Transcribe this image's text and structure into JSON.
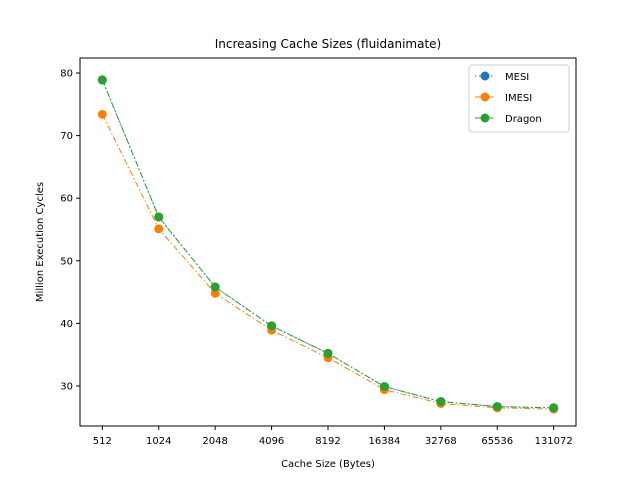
{
  "chart_data": {
    "type": "line",
    "title": "Increasing Cache Sizes (fluidanimate)",
    "xlabel": "Cache Size (Bytes)",
    "ylabel": "Million Execution Cycles",
    "categories": [
      "512",
      "1024",
      "2048",
      "4096",
      "8192",
      "16384",
      "32768",
      "65536",
      "131072"
    ],
    "ylim": [
      23.6,
      82.4
    ],
    "yticks": [
      30,
      40,
      50,
      60,
      70,
      80
    ],
    "grid": false,
    "legend_position": "top-right",
    "series": [
      {
        "name": "MESI",
        "color": "#1f77b4",
        "dash": "dotted",
        "values": [
          78.9,
          57.0,
          45.8,
          39.6,
          35.2,
          29.9,
          27.5,
          26.7,
          26.5
        ]
      },
      {
        "name": "IMESI",
        "color": "#ff7f0e",
        "dash": "dashdot",
        "values": [
          73.4,
          55.1,
          44.8,
          38.9,
          34.5,
          29.4,
          27.2,
          26.5,
          26.3
        ]
      },
      {
        "name": "Dragon",
        "color": "#2ca02c",
        "dash": "dashdot",
        "values": [
          78.9,
          57.0,
          45.8,
          39.6,
          35.2,
          29.9,
          27.5,
          26.7,
          26.5
        ]
      }
    ]
  }
}
